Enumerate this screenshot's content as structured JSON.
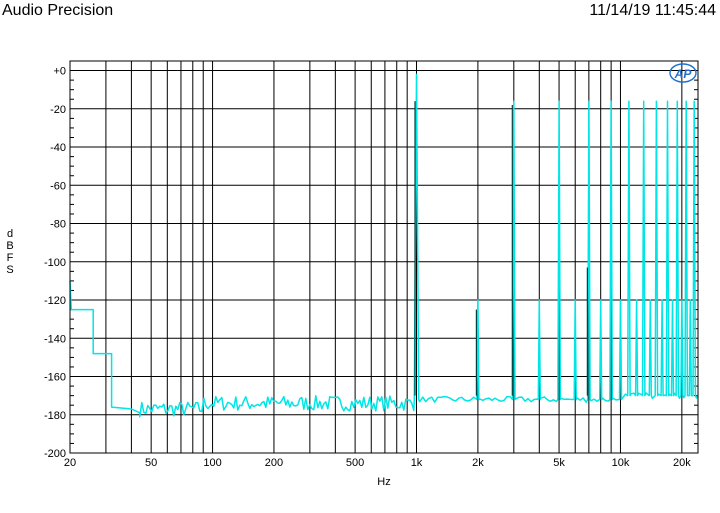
{
  "header": {
    "brand": "Audio Precision",
    "timestamp": "11/14/19 11:45:44"
  },
  "chart_data": {
    "type": "line",
    "title": "",
    "xlabel": "Hz",
    "ylabel": "dBFS",
    "x_scale": "log",
    "xlim": [
      20,
      24000
    ],
    "ylim": [
      -200,
      5
    ],
    "grid": true,
    "x_ticks": [
      {
        "value": 20,
        "label": "20"
      },
      {
        "value": 50,
        "label": "50"
      },
      {
        "value": 100,
        "label": "100"
      },
      {
        "value": 200,
        "label": "200"
      },
      {
        "value": 500,
        "label": "500"
      },
      {
        "value": 1000,
        "label": "1k"
      },
      {
        "value": 2000,
        "label": "2k"
      },
      {
        "value": 5000,
        "label": "5k"
      },
      {
        "value": 10000,
        "label": "10k"
      },
      {
        "value": 20000,
        "label": "20k"
      }
    ],
    "y_ticks": [
      {
        "value": 0,
        "label": "+0"
      },
      {
        "value": -20,
        "label": "-20"
      },
      {
        "value": -40,
        "label": "-40"
      },
      {
        "value": -60,
        "label": "-60"
      },
      {
        "value": -80,
        "label": "-80"
      },
      {
        "value": -100,
        "label": "-100"
      },
      {
        "value": -120,
        "label": "-120"
      },
      {
        "value": -140,
        "label": "-140"
      },
      {
        "value": -160,
        "label": "-160"
      },
      {
        "value": -180,
        "label": "-180"
      },
      {
        "value": -200,
        "label": "-200"
      }
    ],
    "series": [
      {
        "color": "#00e5e5",
        "noise_floor_dbfs": -172,
        "low_freq_steps": [
          {
            "x": 20,
            "y": -110
          },
          {
            "x": 20.3,
            "y": -125
          },
          {
            "x": 26,
            "y": -125
          },
          {
            "x": 26,
            "y": -148
          },
          {
            "x": 32,
            "y": -148
          },
          {
            "x": 32,
            "y": -176
          },
          {
            "x": 40,
            "y": -177
          },
          {
            "x": 44,
            "y": -179
          }
        ],
        "tones": [
          {
            "x": 1000,
            "y": -2
          },
          {
            "x": 3000,
            "y": -16
          },
          {
            "x": 5000,
            "y": -16
          },
          {
            "x": 7000,
            "y": -16
          },
          {
            "x": 9000,
            "y": -16
          },
          {
            "x": 11000,
            "y": -16
          },
          {
            "x": 13000,
            "y": -16
          },
          {
            "x": 15000,
            "y": -16
          },
          {
            "x": 17000,
            "y": -16
          },
          {
            "x": 19000,
            "y": -16
          },
          {
            "x": 21000,
            "y": -16
          },
          {
            "x": 23000,
            "y": -16
          }
        ],
        "spurs": [
          {
            "x": 2000,
            "y": -120
          },
          {
            "x": 4000,
            "y": -120
          },
          {
            "x": 6000,
            "y": -120
          },
          {
            "x": 8000,
            "y": -120
          },
          {
            "x": 10000,
            "y": -120
          },
          {
            "x": 12000,
            "y": -120
          },
          {
            "x": 14000,
            "y": -120
          },
          {
            "x": 16000,
            "y": -120
          },
          {
            "x": 18000,
            "y": -120
          },
          {
            "x": 20000,
            "y": -120
          },
          {
            "x": 22000,
            "y": -120
          }
        ]
      },
      {
        "color": "#004040",
        "markers": [
          {
            "x": 1000,
            "y": -16
          },
          {
            "x": 2000,
            "y": -125
          },
          {
            "x": 3000,
            "y": -18
          },
          {
            "x": 7000,
            "y": -103
          }
        ]
      }
    ]
  }
}
